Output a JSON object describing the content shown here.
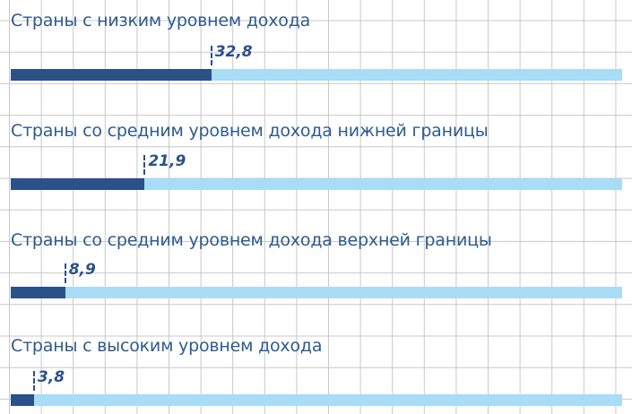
{
  "chart_data": {
    "type": "bar",
    "orientation": "horizontal",
    "categories": [
      "Страны с низким уровнем дохода",
      "Страны со средним уровнем дохода нижней границы",
      "Страны со средним уровнем дохода верхней границы",
      "Страны с высоким уровнем дохода"
    ],
    "values": [
      32.8,
      21.9,
      8.9,
      3.8
    ],
    "value_labels": [
      "32,8",
      "21,9",
      "8,9",
      "3,8"
    ],
    "xlim": [
      0,
      100
    ],
    "grid": true,
    "colors": {
      "value": "#2b5189",
      "remainder": "#a9dcf7",
      "text": "#2f5a8f",
      "grid": "#c8c8c8"
    }
  }
}
